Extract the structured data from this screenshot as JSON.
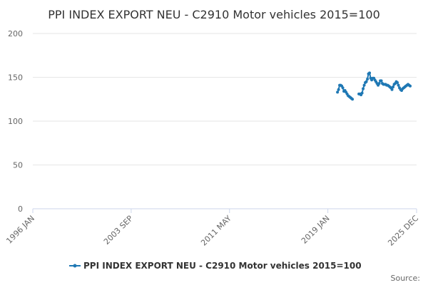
{
  "chart_data": {
    "type": "line",
    "title": "PPI INDEX EXPORT NEU - C2910 Motor vehicles 2015=100",
    "source_label": "Source:",
    "ylim": [
      0,
      200
    ],
    "y_ticks": [
      0,
      50,
      100,
      150,
      200
    ],
    "x_range": [
      "1996-01",
      "2025-12"
    ],
    "x_ticks": [
      {
        "date": "1996-01",
        "label": "1996 JAN"
      },
      {
        "date": "2003-09",
        "label": "2003 SEP"
      },
      {
        "date": "2011-05",
        "label": "2011 MAY"
      },
      {
        "date": "2019-01",
        "label": "2019 JAN"
      },
      {
        "date": "2025-12",
        "label": "2025 DEC"
      }
    ],
    "grid": true,
    "legend": "bottom-center",
    "color": "#1f78b4",
    "series": [
      {
        "name": "PPI INDEX EXPORT NEU - C2910 Motor vehicles 2015=100",
        "segments": [
          [
            [
              "2019-10",
              133
            ],
            [
              "2019-11",
              136
            ],
            [
              "2019-12",
              141
            ],
            [
              "2020-01",
              141
            ],
            [
              "2020-02",
              140
            ],
            [
              "2020-03",
              138
            ],
            [
              "2020-04",
              134
            ],
            [
              "2020-05",
              135
            ],
            [
              "2020-06",
              133
            ],
            [
              "2020-07",
              131
            ],
            [
              "2020-08",
              129
            ],
            [
              "2020-09",
              128
            ],
            [
              "2020-10",
              127
            ],
            [
              "2020-11",
              126
            ],
            [
              "2020-12",
              125
            ]
          ],
          [
            [
              "2021-06",
              131
            ],
            [
              "2021-07",
              131
            ],
            [
              "2021-08",
              130
            ],
            [
              "2021-09",
              132
            ],
            [
              "2021-10",
              137
            ],
            [
              "2021-11",
              141
            ],
            [
              "2021-12",
              144
            ],
            [
              "2022-01",
              145
            ],
            [
              "2022-02",
              148
            ],
            [
              "2022-03",
              154
            ],
            [
              "2022-04",
              155
            ],
            [
              "2022-05",
              149
            ],
            [
              "2022-06",
              147
            ],
            [
              "2022-07",
              149
            ],
            [
              "2022-08",
              149
            ],
            [
              "2022-09",
              147
            ],
            [
              "2022-10",
              145
            ],
            [
              "2022-11",
              143
            ],
            [
              "2022-12",
              141
            ],
            [
              "2023-01",
              143
            ],
            [
              "2023-02",
              146
            ],
            [
              "2023-03",
              146
            ],
            [
              "2023-04",
              143
            ],
            [
              "2023-05",
              142
            ],
            [
              "2023-06",
              142
            ],
            [
              "2023-07",
              142
            ],
            [
              "2023-08",
              141
            ],
            [
              "2023-09",
              141
            ],
            [
              "2023-10",
              140
            ],
            [
              "2023-11",
              139
            ],
            [
              "2023-12",
              138
            ],
            [
              "2024-01",
              136
            ],
            [
              "2024-02",
              139
            ],
            [
              "2024-03",
              142
            ],
            [
              "2024-04",
              143
            ],
            [
              "2024-05",
              145
            ],
            [
              "2024-06",
              144
            ],
            [
              "2024-07",
              141
            ],
            [
              "2024-08",
              138
            ],
            [
              "2024-09",
              136
            ],
            [
              "2024-10",
              135
            ],
            [
              "2024-11",
              137
            ],
            [
              "2024-12",
              138
            ],
            [
              "2025-01",
              139
            ],
            [
              "2025-02",
              140
            ],
            [
              "2025-03",
              141
            ],
            [
              "2025-04",
              142
            ],
            [
              "2025-05",
              141
            ],
            [
              "2025-06",
              140
            ]
          ]
        ]
      }
    ]
  }
}
